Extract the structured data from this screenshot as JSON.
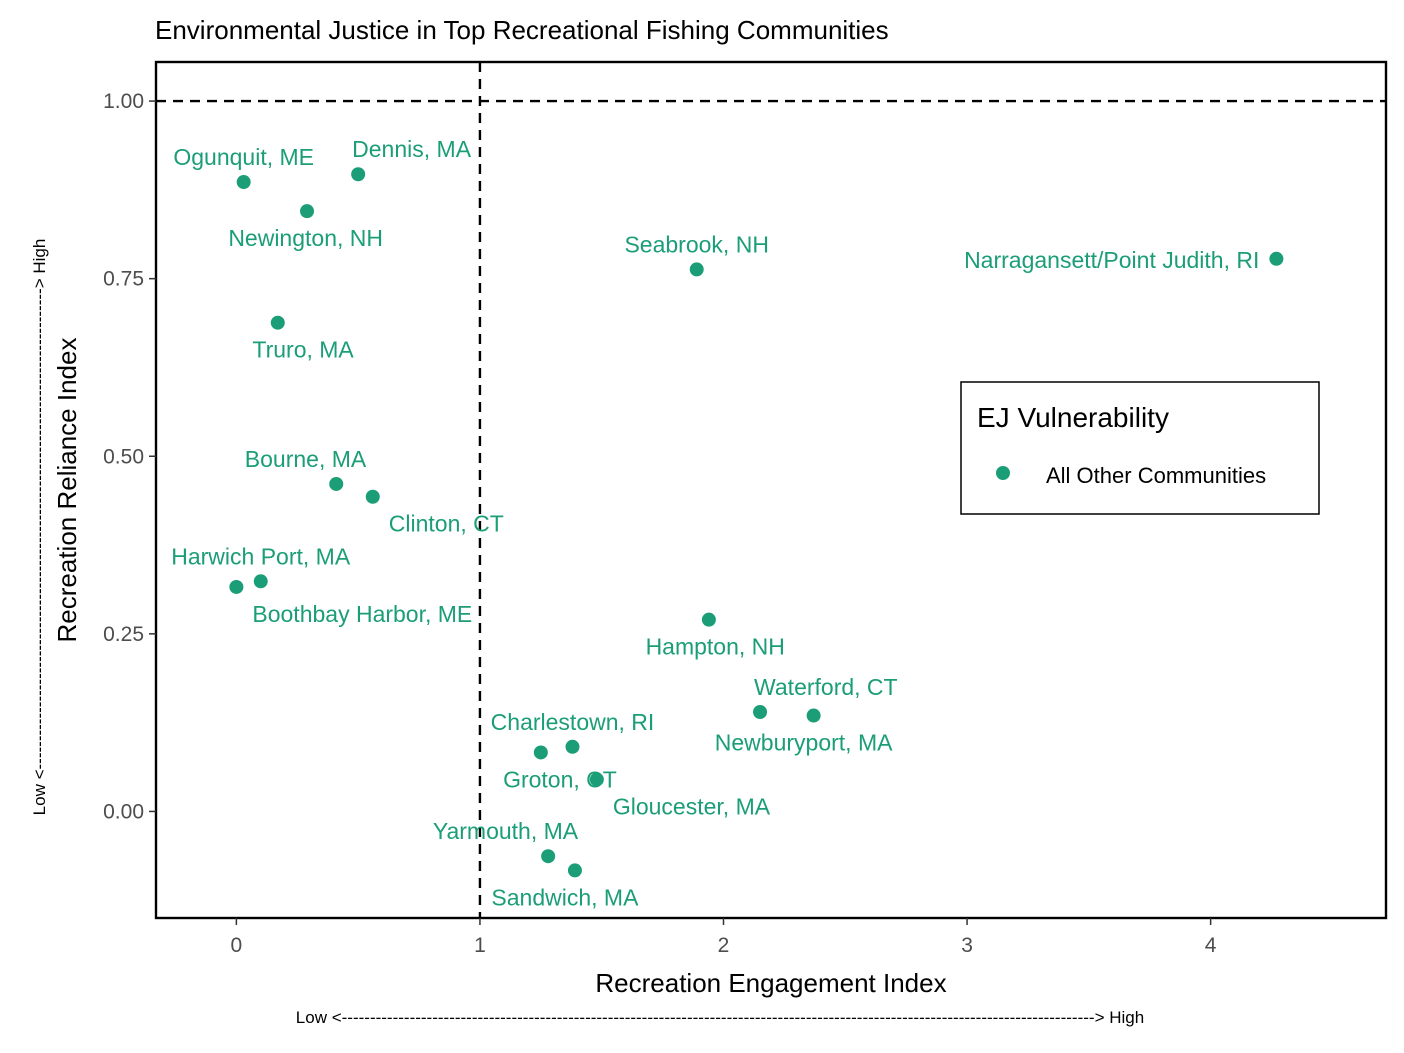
{
  "chart_data": {
    "type": "scatter",
    "title": "Environmental Justice in Top Recreational Fishing Communities",
    "xlabel": "Recreation Engagement Index",
    "ylabel": "Recreation Reliance Index",
    "x_arrow": "Low <-------------------------------------------------------------------------------------------------------------------------------------> High",
    "y_arrow": "Low <-------------------------------------------------------------------------------------> High",
    "xlim": [
      -0.33,
      4.72
    ],
    "ylim": [
      -0.15,
      1.055
    ],
    "x_ticks": [
      0,
      1,
      2,
      3,
      4
    ],
    "x_tick_labels": [
      "0",
      "1",
      "2",
      "3",
      "4"
    ],
    "y_ticks": [
      0,
      0.25,
      0.5,
      0.75,
      1
    ],
    "y_tick_labels": [
      "0.00",
      "0.25",
      "0.50",
      "0.75",
      "1.00"
    ],
    "reference_lines": {
      "x": 1,
      "y": 1,
      "style": "dashed"
    },
    "grid": false,
    "legend": {
      "title": "EJ Vulnerability",
      "placement": "right-middle-inside",
      "entries": [
        {
          "label": "All Other Communities",
          "color": "#1b9e77"
        }
      ]
    },
    "series": [
      {
        "name": "All Other Communities",
        "color": "#1b9e77",
        "points": [
          {
            "label": "Ogunquit, ME",
            "x": 0.03,
            "y": 0.886,
            "label_pos": "above"
          },
          {
            "label": "Dennis, MA",
            "x": 0.5,
            "y": 0.897,
            "label_pos": "above-right"
          },
          {
            "label": "Newington, NH",
            "x": 0.29,
            "y": 0.845,
            "label_pos": "below-left"
          },
          {
            "label": "Truro, MA",
            "x": 0.17,
            "y": 0.688,
            "label_pos": "below-left"
          },
          {
            "label": "Seabrook, NH",
            "x": 1.89,
            "y": 0.763,
            "label_pos": "above"
          },
          {
            "label": "Narragansett/Point Judith, RI",
            "x": 4.27,
            "y": 0.778,
            "label_pos": "left"
          },
          {
            "label": "Bourne, MA",
            "x": 0.41,
            "y": 0.461,
            "label_pos": "above-left"
          },
          {
            "label": "Clinton, CT",
            "x": 0.56,
            "y": 0.443,
            "label_pos": "below-right"
          },
          {
            "label": "Harwich Port, MA",
            "x": 0.1,
            "y": 0.324,
            "label_pos": "above"
          },
          {
            "label": "Boothbay Harbor, ME",
            "x": 0.0,
            "y": 0.316,
            "label_pos": "below-right"
          },
          {
            "label": "Hampton, NH",
            "x": 1.94,
            "y": 0.27,
            "label_pos": "below-left"
          },
          {
            "label": "Waterford, CT",
            "x": 2.15,
            "y": 0.14,
            "label_pos": "above-right"
          },
          {
            "label": "Newburyport, MA",
            "x": 2.37,
            "y": 0.135,
            "label_pos": "below"
          },
          {
            "label": "Charlestown, RI",
            "x": 1.38,
            "y": 0.091,
            "label_pos": "above"
          },
          {
            "label": "Groton, CT",
            "x": 1.25,
            "y": 0.083,
            "label_pos": "below-left"
          },
          {
            "label": "Gloucester, MA",
            "x": 1.48,
            "y": 0.045,
            "label_pos": "below-right"
          },
          {
            "label": "Yarmouth, MA",
            "x": 1.28,
            "y": -0.063,
            "label_pos": "above-left"
          },
          {
            "label": "Sandwich, MA",
            "x": 1.39,
            "y": -0.083,
            "label_pos": "below"
          }
        ]
      }
    ]
  }
}
